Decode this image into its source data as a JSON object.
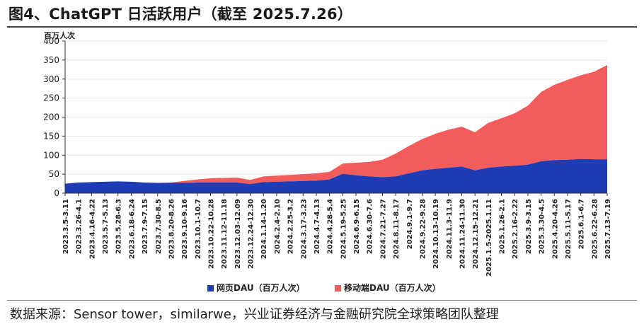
{
  "title": "图4、ChatGPT 日活跃用户（截至 2025.7.26）",
  "source": "数据来源：Sensor tower，similarwe，兴业证券经济与金融研究院全球策略团队整理",
  "colors": {
    "web": "#1f3cb5",
    "mobile": "#f25c5c",
    "axis": "#333333",
    "grid": "#e6e6e6"
  },
  "chart_data": {
    "type": "area",
    "stacked": true,
    "ylabel": "百万人次",
    "ylim": [
      0,
      400
    ],
    "yticks": [
      0,
      50,
      100,
      150,
      200,
      250,
      300,
      350,
      400
    ],
    "legend_position": "bottom",
    "x": [
      "2023.3.5-3.11",
      "2023.3.26-4.1",
      "2023.4.16-4.22",
      "2023.5.7-5.13",
      "2023.5.28-6.3",
      "2023.6.18-6.24",
      "2023.7.9-7.15",
      "2023.7.30-8.5",
      "2023.8.20-8.26",
      "2023.9.10-9.16",
      "2023.10.1-10.7",
      "2023.10.22-10.28",
      "2023.11.12-11.18",
      "2023.12.03-12.09",
      "2023.12.24-12.30",
      "2024.1.14-1.20",
      "2024.2.4-2.10",
      "2024.2.25-3.2",
      "2024.3.17-3.23",
      "2024.4.7-4.13",
      "2024.4.28-5.4",
      "2024.5.19-5.25",
      "2024.6.9-6.15",
      "2024.6.30-7.6",
      "2024.7.21-7.27",
      "2024.8.11-8.17",
      "2024.9.1-9.7",
      "2024.9.22-9.28",
      "2024.10.13-10.19",
      "2024.11.3-11.9",
      "2024.11.24-11.30",
      "2024.12.15-12.21",
      "2025.1.5-2025.1.11",
      "2025.1.26-2.1",
      "2025.2.16-2.22",
      "2025.3.9-3.15",
      "2025.3.30-4.5",
      "2025.4.20-4.26",
      "2025.5.11-5.17",
      "2025.6.1-6.7",
      "2025.6.22-6.28",
      "2025.7.13-7.19"
    ],
    "series": [
      {
        "name": "网页DAU（百万人次）",
        "values": [
          25,
          28,
          29,
          30,
          31,
          30,
          28,
          27,
          27,
          27,
          28,
          28,
          28,
          28,
          24,
          29,
          30,
          31,
          32,
          33,
          36,
          51,
          47,
          44,
          42,
          44,
          52,
          60,
          64,
          67,
          70,
          60,
          67,
          70,
          72,
          75,
          84,
          87,
          88,
          90,
          89,
          89
        ]
      },
      {
        "name": "移动端DAU（百万人次）",
        "values": [
          0,
          0,
          0,
          0,
          0,
          0,
          0,
          0,
          1,
          5,
          8,
          11,
          12,
          13,
          11,
          15,
          16,
          17,
          18,
          19,
          20,
          27,
          33,
          38,
          46,
          60,
          72,
          82,
          92,
          100,
          105,
          100,
          118,
          127,
          138,
          155,
          182,
          198,
          210,
          220,
          230,
          248
        ]
      }
    ]
  }
}
